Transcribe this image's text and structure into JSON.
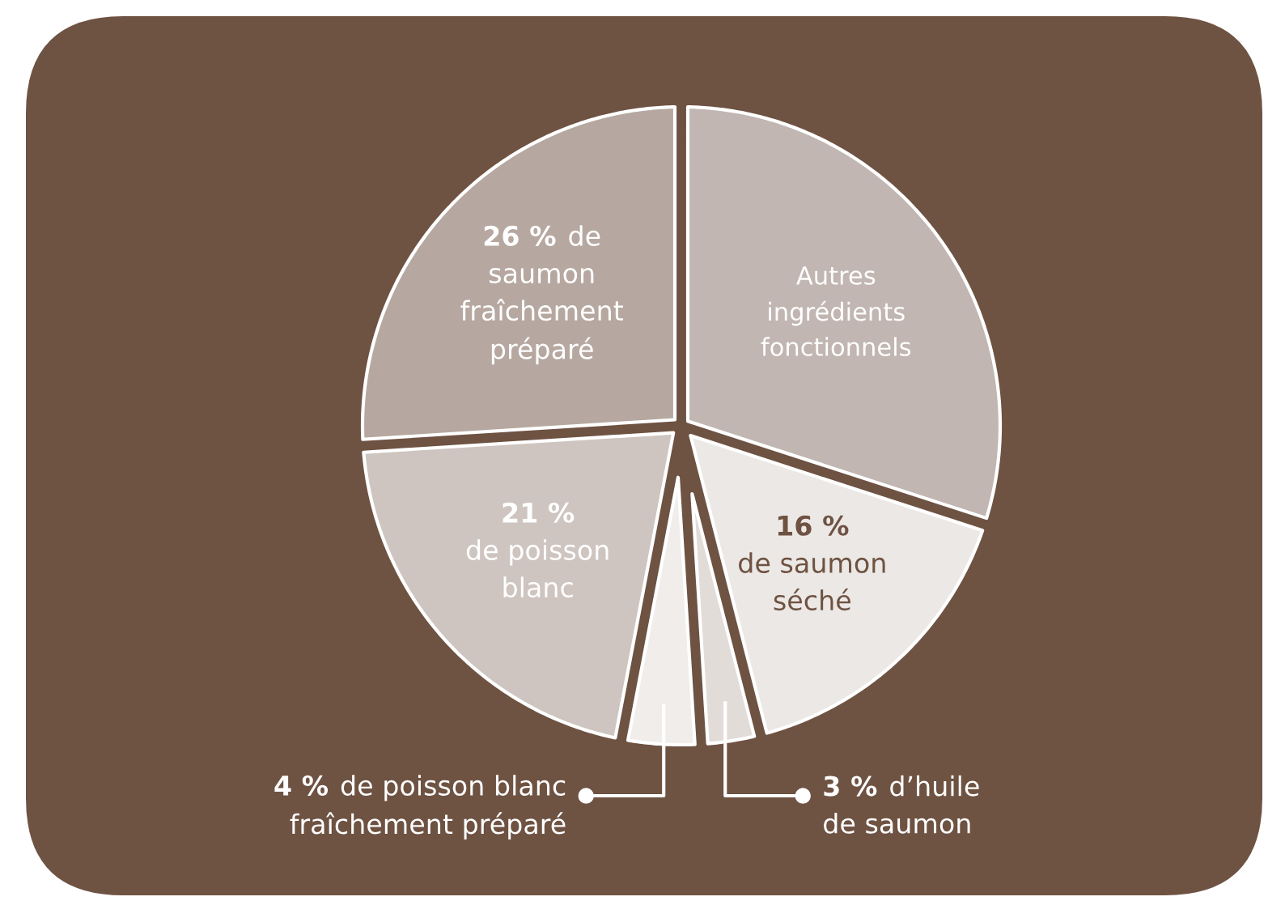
{
  "chart_data": {
    "type": "pie",
    "categories": [
      "Autres\ningrédients\nfonctionnels",
      "\nde saumon\nséché",
      "d’huile\nde saumon",
      "de poisson blanc\nfraîchement préparé",
      "\nde poisson\nblanc",
      "de\nsaumon\nfraîchement\npréparé"
    ],
    "values": [
      30,
      16,
      3,
      4,
      21,
      26
    ],
    "value_labels": [
      null,
      "16 %",
      "3 %",
      "4 %",
      "21 %",
      "26 %"
    ],
    "colors": [
      "#c1b6b1",
      "#ece8e5",
      "#e2dcd9",
      "#f0edeb",
      "#cec5c0",
      "#b6a8a0"
    ]
  }
}
